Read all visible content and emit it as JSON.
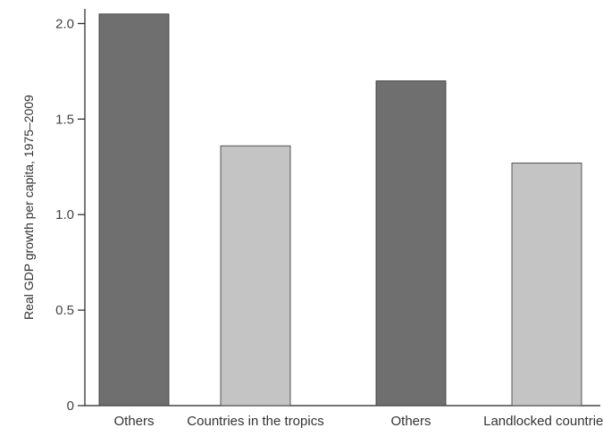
{
  "chart_data": {
    "type": "bar",
    "categories": [
      "Others",
      "Countries in the tropics",
      "Others",
      "Landlocked countries"
    ],
    "values": [
      2.05,
      1.36,
      1.7,
      1.27
    ],
    "ylabel": "Real GDP growth per capita, 1975–2009",
    "yticks": [
      "0",
      "0.5",
      "1.0",
      "1.5",
      "2.0"
    ],
    "ylim": [
      0,
      2.1
    ],
    "bar_colors": [
      "#6f6f6f",
      "#c4c4c4",
      "#6f6f6f",
      "#c4c4c4"
    ],
    "grid": false
  }
}
